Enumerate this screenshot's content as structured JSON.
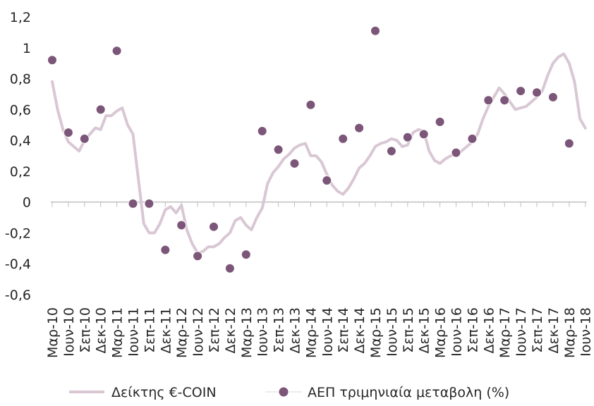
{
  "chart_data": {
    "type": "line",
    "title": "",
    "xlabel": "",
    "ylabel": "",
    "ylim": [
      -0.6,
      1.2
    ],
    "yticks": [
      -0.6,
      -0.4,
      -0.2,
      0,
      0.2,
      0.4,
      0.6,
      0.8,
      1,
      1.2
    ],
    "ytick_labels": [
      "-0,6",
      "-0,4",
      "-0,2",
      "0",
      "0,2",
      "0,4",
      "0,6",
      "0,8",
      "1",
      "1,2"
    ],
    "categories": [
      "Μαρ-10",
      "Ιουν-10",
      "Σεπ-10",
      "Δεκ-10",
      "Μαρ-11",
      "Ιουν-11",
      "Σεπ-11",
      "Δεκ-11",
      "Μαρ-12",
      "Ιουν-12",
      "Σεπ-12",
      "Δεκ-12",
      "Μαρ-13",
      "Ιουν-13",
      "Σεπ-13",
      "Δεκ-13",
      "Μαρ-14",
      "Ιουν-14",
      "Σεπ-14",
      "Δεκ-14",
      "Μαρ-15",
      "Ιουν-15",
      "Σεπ-15",
      "Δεκ-15",
      "Μαρ-16",
      "Ιουν-16",
      "Σεπ-16",
      "Δεκ-16",
      "Μαρ-17",
      "Ιουν-17",
      "Σεπ-17",
      "Δεκ-17",
      "Μαρ-18",
      "Ιουν-18"
    ],
    "grid": false,
    "legend_position": "bottom",
    "series": [
      {
        "name": "Δείκτης €-COIN",
        "kind": "line",
        "color": "#d9c7d4",
        "x": [
          0,
          0.33,
          0.67,
          1,
          1.33,
          1.67,
          2,
          2.33,
          2.67,
          3,
          3.33,
          3.67,
          4,
          4.33,
          4.67,
          5,
          5.33,
          5.67,
          6,
          6.33,
          6.67,
          7,
          7.33,
          7.67,
          8,
          8.33,
          8.67,
          9,
          9.33,
          9.67,
          10,
          10.33,
          10.67,
          11,
          11.33,
          11.67,
          12,
          12.33,
          12.67,
          13,
          13.33,
          13.67,
          14,
          14.33,
          14.67,
          15,
          15.33,
          15.67,
          16,
          16.33,
          16.67,
          17,
          17.33,
          17.67,
          18,
          18.33,
          18.67,
          19,
          19.33,
          19.67,
          20,
          20.33,
          20.67,
          21,
          21.33,
          21.67,
          22,
          22.33,
          22.67,
          23,
          23.33,
          23.67,
          24,
          24.33,
          24.67,
          25,
          25.33,
          25.67,
          26,
          26.33,
          26.67,
          27,
          27.33,
          27.67,
          28,
          28.33,
          28.67,
          29,
          29.33,
          29.67,
          30,
          30.33,
          30.67,
          31,
          31.33,
          31.67,
          32,
          32.33,
          32.67,
          33
        ],
        "values": [
          0.78,
          0.6,
          0.47,
          0.39,
          0.36,
          0.33,
          0.4,
          0.44,
          0.48,
          0.47,
          0.56,
          0.56,
          0.59,
          0.61,
          0.5,
          0.44,
          0.15,
          -0.14,
          -0.2,
          -0.2,
          -0.14,
          -0.05,
          -0.03,
          -0.07,
          -0.02,
          -0.18,
          -0.27,
          -0.33,
          -0.32,
          -0.29,
          -0.29,
          -0.27,
          -0.23,
          -0.2,
          -0.12,
          -0.1,
          -0.15,
          -0.18,
          -0.1,
          -0.04,
          0.12,
          0.19,
          0.23,
          0.28,
          0.31,
          0.35,
          0.37,
          0.38,
          0.3,
          0.3,
          0.26,
          0.18,
          0.11,
          0.07,
          0.05,
          0.09,
          0.15,
          0.22,
          0.25,
          0.3,
          0.36,
          0.38,
          0.39,
          0.41,
          0.4,
          0.36,
          0.37,
          0.45,
          0.47,
          0.46,
          0.33,
          0.27,
          0.25,
          0.28,
          0.3,
          0.31,
          0.33,
          0.36,
          0.39,
          0.44,
          0.54,
          0.62,
          0.68,
          0.74,
          0.7,
          0.65,
          0.6,
          0.61,
          0.62,
          0.65,
          0.68,
          0.72,
          0.82,
          0.9,
          0.94,
          0.96,
          0.9,
          0.78,
          0.54,
          0.48
        ]
      },
      {
        "name": "ΑΕΠ τριμηνιαία μεταβολη (%)",
        "kind": "scatter",
        "color": "#7c5679",
        "x": [
          0,
          1,
          2,
          3,
          4,
          5,
          6,
          7,
          8,
          9,
          10,
          11,
          12,
          13,
          14,
          15,
          16,
          17,
          18,
          19,
          20,
          21,
          22,
          23,
          24,
          25,
          26,
          27,
          28,
          29,
          30,
          31,
          32
        ],
        "values": [
          0.92,
          0.45,
          0.41,
          0.6,
          0.98,
          -0.01,
          -0.01,
          -0.31,
          -0.15,
          -0.35,
          -0.16,
          -0.43,
          -0.34,
          0.46,
          0.34,
          0.25,
          0.63,
          0.14,
          0.41,
          0.48,
          1.11,
          0.33,
          0.42,
          0.44,
          0.52,
          0.32,
          0.41,
          0.66,
          0.66,
          0.72,
          0.71,
          0.68,
          0.38
        ]
      }
    ]
  }
}
